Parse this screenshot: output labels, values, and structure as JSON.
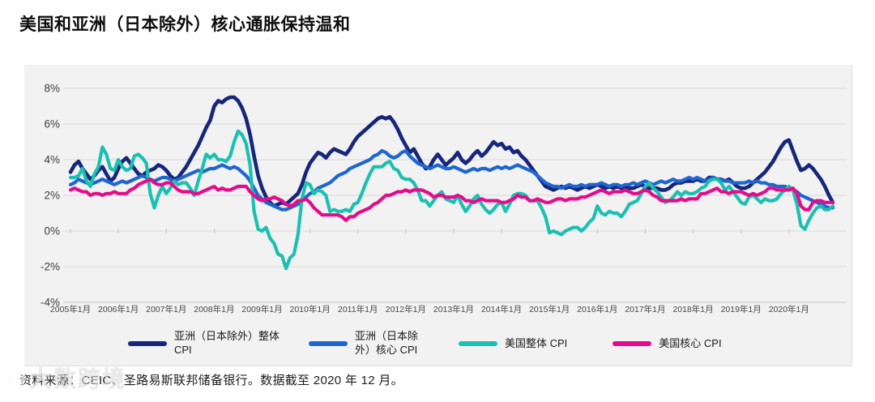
{
  "title": "美国和亚洲（日本除外）核心通胀保持温和",
  "source_note": "资料来源：CEIC、圣路易斯联邦储备银行。数据截至 2020 年 12 月。",
  "watermark": {
    "text": "大数跨境"
  },
  "chart_data": {
    "type": "line",
    "title": "美国和亚洲（日本除外）核心通胀保持温和",
    "xlabel": "",
    "ylabel": "",
    "ylim": [
      -4,
      8
    ],
    "ytick_step": 2,
    "ytick_suffix": "%",
    "grid": "horizontal",
    "grid_color": "#d8d8d8",
    "background": "#f2f2f3",
    "legend_position": "bottom",
    "x_unit": "month",
    "x_start": "2005年1月",
    "x_end": "2020年12月",
    "x_ticks": [
      "2005年1月",
      "2006年1月",
      "2007年1月",
      "2008年1月",
      "2009年1月",
      "2010年1月",
      "2011年1月",
      "2012年1月",
      "2013年1月",
      "2014年1月",
      "2015年1月",
      "2016年1月",
      "2017年1月",
      "2018年1月",
      "2019年1月",
      "2020年1月"
    ],
    "series": [
      {
        "name": "亚洲（日本除外）整体 CPI",
        "legend_label": "亚洲（日本除外）整体\nCPI",
        "color": "#16267b",
        "values": [
          3.3,
          3.7,
          3.9,
          3.5,
          3.2,
          2.9,
          3.1,
          3.4,
          3.6,
          3.2,
          2.8,
          3.0,
          3.5,
          3.9,
          4.1,
          3.8,
          3.5,
          3.2,
          3.1,
          3.3,
          3.4,
          3.5,
          3.7,
          3.6,
          3.4,
          3.1,
          2.9,
          3.0,
          3.3,
          3.6,
          4.0,
          4.4,
          4.8,
          5.3,
          5.8,
          6.2,
          7.0,
          7.3,
          7.2,
          7.4,
          7.5,
          7.5,
          7.3,
          6.9,
          6.3,
          5.4,
          4.2,
          3.1,
          2.4,
          1.9,
          1.6,
          1.4,
          1.5,
          1.6,
          1.5,
          1.7,
          1.9,
          2.1,
          2.6,
          3.3,
          3.8,
          4.1,
          4.4,
          4.3,
          4.1,
          4.4,
          4.6,
          4.5,
          4.4,
          4.3,
          4.6,
          5.0,
          5.3,
          5.5,
          5.7,
          5.9,
          6.1,
          6.3,
          6.4,
          6.3,
          6.4,
          6.1,
          5.7,
          5.2,
          4.8,
          4.4,
          4.6,
          4.2,
          3.8,
          3.5,
          3.6,
          4.0,
          4.3,
          4.0,
          3.7,
          3.9,
          4.1,
          4.4,
          4.0,
          3.8,
          4.0,
          4.3,
          4.5,
          4.2,
          4.4,
          4.7,
          5.0,
          4.8,
          4.9,
          4.6,
          4.7,
          4.4,
          4.5,
          4.2,
          4.0,
          3.7,
          3.4,
          3.1,
          2.8,
          2.5,
          2.4,
          2.3,
          2.4,
          2.5,
          2.4,
          2.5,
          2.4,
          2.3,
          2.4,
          2.5,
          2.4,
          2.5,
          2.6,
          2.5,
          2.4,
          2.5,
          2.4,
          2.5,
          2.4,
          2.5,
          2.4,
          2.4,
          2.5,
          2.6,
          2.5,
          2.4,
          2.4,
          2.4,
          2.3,
          2.3,
          2.4,
          2.6,
          2.7,
          2.7,
          2.8,
          2.8,
          2.8,
          2.9,
          2.8,
          2.8,
          3.0,
          3.0,
          2.9,
          2.9,
          2.8,
          2.9,
          2.7,
          2.5,
          2.4,
          2.4,
          2.5,
          2.7,
          2.9,
          3.1,
          3.3,
          3.6,
          3.9,
          4.3,
          4.7,
          5.0,
          5.1,
          4.5,
          3.9,
          3.4,
          3.5,
          3.7,
          3.5,
          3.2,
          2.9,
          2.5,
          2.0,
          1.6
        ]
      },
      {
        "name": "亚洲（日本除外）核心 CPI",
        "legend_label": "亚洲（日本除\n外）核心 CPI",
        "color": "#1e66d0",
        "values": [
          2.6,
          2.7,
          2.9,
          2.8,
          2.7,
          2.6,
          2.7,
          2.8,
          2.9,
          2.8,
          2.7,
          2.6,
          2.7,
          2.8,
          2.7,
          2.8,
          2.9,
          3.0,
          3.1,
          3.0,
          2.9,
          2.8,
          2.9,
          3.0,
          3.0,
          2.9,
          2.8,
          2.9,
          3.0,
          3.1,
          3.2,
          3.3,
          3.4,
          3.3,
          3.4,
          3.5,
          3.5,
          3.6,
          3.7,
          3.6,
          3.5,
          3.6,
          3.5,
          3.3,
          3.1,
          2.8,
          2.4,
          2.0,
          1.8,
          1.6,
          1.5,
          1.4,
          1.3,
          1.2,
          1.2,
          1.3,
          1.4,
          1.5,
          1.7,
          1.9,
          2.1,
          2.2,
          2.4,
          2.5,
          2.6,
          2.7,
          2.9,
          3.1,
          3.2,
          3.3,
          3.5,
          3.6,
          3.7,
          3.8,
          3.9,
          4.0,
          4.2,
          4.3,
          4.5,
          4.4,
          4.2,
          4.1,
          4.2,
          4.4,
          4.5,
          4.2,
          4.0,
          3.8,
          3.7,
          3.6,
          3.5,
          3.6,
          3.7,
          3.6,
          3.5,
          3.5,
          3.6,
          3.5,
          3.4,
          3.3,
          3.4,
          3.5,
          3.4,
          3.5,
          3.5,
          3.4,
          3.5,
          3.6,
          3.5,
          3.6,
          3.5,
          3.6,
          3.7,
          3.6,
          3.5,
          3.4,
          3.3,
          3.1,
          2.9,
          2.7,
          2.6,
          2.5,
          2.5,
          2.4,
          2.5,
          2.6,
          2.5,
          2.5,
          2.6,
          2.5,
          2.6,
          2.6,
          2.6,
          2.7,
          2.6,
          2.5,
          2.6,
          2.6,
          2.5,
          2.6,
          2.6,
          2.7,
          2.6,
          2.7,
          2.8,
          2.7,
          2.6,
          2.7,
          2.8,
          2.7,
          2.8,
          2.9,
          2.8,
          2.8,
          2.9,
          3.0,
          2.9,
          3.0,
          2.9,
          2.8,
          2.9,
          3.0,
          2.9,
          2.9,
          2.8,
          2.8,
          2.7,
          2.7,
          2.7,
          2.7,
          2.8,
          2.7,
          2.8,
          2.7,
          2.7,
          2.6,
          2.6,
          2.5,
          2.5,
          2.5,
          2.4,
          2.3,
          2.2,
          2.0,
          1.9,
          1.8,
          1.7,
          1.6,
          1.5,
          1.4,
          1.3,
          1.3
        ]
      },
      {
        "name": "美国整体 CPI",
        "legend_label": "美国整体 CPI",
        "color": "#1cc0b0",
        "values": [
          3.0,
          3.0,
          3.1,
          3.5,
          2.8,
          2.5,
          3.2,
          3.6,
          4.7,
          4.3,
          3.5,
          3.4,
          4.0,
          3.6,
          3.4,
          3.5,
          4.2,
          4.3,
          4.1,
          3.8,
          2.1,
          1.3,
          2.0,
          2.5,
          2.1,
          2.4,
          2.8,
          2.6,
          2.7,
          2.7,
          2.4,
          2.0,
          2.8,
          3.5,
          4.3,
          4.1,
          4.3,
          4.0,
          4.0,
          3.9,
          4.2,
          5.0,
          5.6,
          5.4,
          4.9,
          3.7,
          1.1,
          0.1,
          0.0,
          0.2,
          -0.4,
          -0.7,
          -1.3,
          -1.4,
          -2.1,
          -1.5,
          -1.3,
          -0.2,
          1.8,
          2.7,
          2.6,
          2.1,
          2.3,
          2.2,
          2.0,
          1.1,
          1.2,
          1.1,
          1.1,
          1.2,
          1.1,
          1.5,
          1.6,
          2.1,
          2.7,
          3.2,
          3.6,
          3.6,
          3.6,
          3.8,
          3.9,
          3.5,
          3.4,
          3.0,
          2.9,
          2.9,
          2.7,
          2.3,
          1.7,
          1.7,
          1.4,
          1.7,
          2.0,
          2.2,
          1.8,
          1.7,
          1.6,
          2.0,
          1.5,
          1.1,
          1.4,
          1.8,
          2.0,
          1.5,
          1.2,
          1.0,
          1.2,
          1.5,
          1.6,
          1.1,
          1.5,
          2.0,
          2.1,
          2.1,
          2.0,
          1.7,
          1.7,
          1.7,
          1.3,
          0.8,
          -0.1,
          0.0,
          -0.1,
          -0.2,
          0.0,
          0.1,
          0.2,
          0.2,
          0.0,
          0.2,
          0.5,
          0.7,
          1.4,
          1.0,
          0.9,
          1.1,
          1.0,
          1.0,
          0.8,
          1.1,
          1.5,
          1.6,
          1.7,
          2.1,
          2.5,
          2.7,
          2.4,
          2.2,
          1.9,
          1.6,
          1.7,
          1.9,
          2.2,
          2.0,
          2.2,
          2.1,
          2.1,
          2.2,
          2.4,
          2.5,
          2.8,
          2.9,
          2.9,
          2.7,
          2.3,
          2.5,
          2.2,
          1.9,
          1.6,
          1.5,
          1.9,
          2.0,
          1.8,
          1.6,
          1.8,
          1.7,
          1.7,
          1.8,
          2.1,
          2.3,
          2.5,
          2.3,
          1.5,
          0.3,
          0.1,
          0.6,
          1.0,
          1.3,
          1.4,
          1.2,
          1.2,
          1.4
        ]
      },
      {
        "name": "美国核心 CPI",
        "legend_label": "美国核心 CPI",
        "color": "#e50c8b",
        "values": [
          2.3,
          2.4,
          2.3,
          2.2,
          2.2,
          2.0,
          2.1,
          2.1,
          2.0,
          2.1,
          2.1,
          2.2,
          2.1,
          2.1,
          2.1,
          2.3,
          2.4,
          2.6,
          2.7,
          2.8,
          2.9,
          2.7,
          2.6,
          2.6,
          2.7,
          2.7,
          2.5,
          2.3,
          2.2,
          2.2,
          2.2,
          2.1,
          2.1,
          2.2,
          2.3,
          2.4,
          2.5,
          2.3,
          2.4,
          2.3,
          2.3,
          2.4,
          2.5,
          2.5,
          2.5,
          2.2,
          2.0,
          1.8,
          1.7,
          1.8,
          1.8,
          1.9,
          1.8,
          1.7,
          1.5,
          1.4,
          1.5,
          1.7,
          1.7,
          1.8,
          1.6,
          1.3,
          1.1,
          0.9,
          0.9,
          0.9,
          0.9,
          0.9,
          0.8,
          0.6,
          0.8,
          0.8,
          1.0,
          1.1,
          1.2,
          1.3,
          1.5,
          1.6,
          1.8,
          2.0,
          2.0,
          2.1,
          2.2,
          2.2,
          2.3,
          2.2,
          2.3,
          2.3,
          2.3,
          2.2,
          2.1,
          1.9,
          2.0,
          2.0,
          1.9,
          1.9,
          1.9,
          2.0,
          1.9,
          1.7,
          1.7,
          1.6,
          1.7,
          1.8,
          1.7,
          1.7,
          1.7,
          1.7,
          1.6,
          1.6,
          1.7,
          1.8,
          2.0,
          1.9,
          1.9,
          1.7,
          1.7,
          1.8,
          1.7,
          1.6,
          1.6,
          1.7,
          1.8,
          1.8,
          1.7,
          1.8,
          1.8,
          1.8,
          1.9,
          1.9,
          2.0,
          2.1,
          2.2,
          2.3,
          2.2,
          2.1,
          2.2,
          2.2,
          2.2,
          2.3,
          2.2,
          2.1,
          2.1,
          2.2,
          2.3,
          2.2,
          2.0,
          1.9,
          1.7,
          1.7,
          1.7,
          1.7,
          1.7,
          1.8,
          1.7,
          1.8,
          1.8,
          1.8,
          2.1,
          2.1,
          2.2,
          2.3,
          2.4,
          2.2,
          2.2,
          2.1,
          2.2,
          2.2,
          2.2,
          2.1,
          2.0,
          2.1,
          2.0,
          2.1,
          2.2,
          2.4,
          2.4,
          2.3,
          2.3,
          2.3,
          2.3,
          2.4,
          2.1,
          1.4,
          1.2,
          1.2,
          1.6,
          1.7,
          1.7,
          1.6,
          1.6,
          1.6
        ]
      }
    ]
  }
}
